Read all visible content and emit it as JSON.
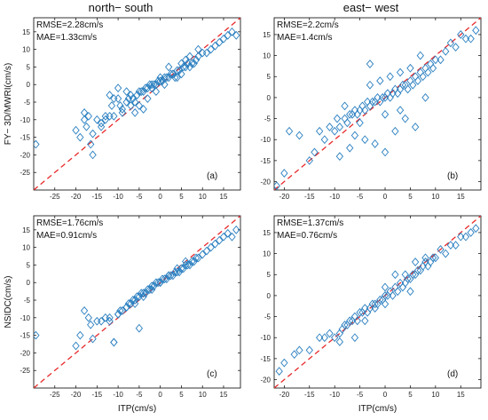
{
  "colors": {
    "marker": "#2a7fc0",
    "refline": "#e8292b",
    "axis": "#000000"
  },
  "column_titles": [
    "north− south",
    "east− west"
  ],
  "chart_data": [
    {
      "type": "scatter",
      "panel": "(a)",
      "ylabel": "FY− 3D/MWRI(cm/s)",
      "xlabel": "",
      "stats": [
        "RMSE=2.28cm/s",
        "MAE=1.33cm/s"
      ],
      "xlim": [
        -30,
        19
      ],
      "ylim": [
        -30,
        19
      ],
      "xticks": [
        -25,
        -20,
        -15,
        -10,
        -5,
        0,
        5,
        10,
        15
      ],
      "yticks": [
        -25,
        -20,
        -15,
        -10,
        -5,
        0,
        5,
        10,
        15
      ],
      "x": [
        -29.5,
        -20,
        -19,
        -18,
        -17.5,
        -17,
        -16.5,
        -16,
        -15,
        -14,
        -13,
        -12,
        -11.5,
        -11,
        -10,
        -9.5,
        -9,
        -8,
        -7.5,
        -7,
        -6.5,
        -6,
        -5.5,
        -5,
        -4.5,
        -4,
        -3.5,
        -3,
        -2.5,
        -2,
        -1.5,
        -1,
        -0.5,
        0,
        0.5,
        1,
        1.5,
        2,
        2.5,
        3,
        3.5,
        4,
        4.5,
        5,
        5.5,
        6,
        6.5,
        7,
        7.5,
        8,
        8.5,
        9,
        10,
        11,
        12,
        13,
        14,
        15,
        16,
        17,
        18,
        -12,
        -10,
        -8,
        -6,
        -4,
        -2,
        0,
        2,
        4,
        6,
        -13,
        -11,
        -9,
        -7,
        -5,
        -3,
        -1,
        1,
        3,
        5,
        7,
        9,
        -14,
        -16,
        -18
      ],
      "y": [
        -17,
        -13,
        -15,
        -8,
        -12,
        -9,
        -17,
        -20,
        -10,
        -11,
        -9,
        -9,
        -6,
        -4,
        -4,
        -6,
        -7,
        -5,
        -4,
        -3,
        -4,
        -5,
        -3,
        -2,
        -2,
        -2,
        -1,
        -1,
        0,
        -1,
        0,
        0,
        1,
        1,
        1,
        2,
        2,
        2,
        3,
        3,
        2,
        4,
        4,
        3,
        5,
        5,
        6,
        5,
        6,
        6,
        7,
        8,
        9,
        9,
        10,
        11,
        12,
        13,
        14,
        15,
        14,
        -3,
        -1,
        -2,
        -8,
        -7,
        0,
        2,
        5,
        2,
        7,
        -10,
        -9,
        -8,
        -6,
        -6,
        -4,
        -2,
        0,
        3,
        6,
        8,
        10,
        -12,
        -14,
        -10
      ]
    },
    {
      "type": "scatter",
      "panel": "(b)",
      "ylabel": "",
      "xlabel": "",
      "stats": [
        "RMSE=2.2cm/s",
        "MAE=1.4cm/s"
      ],
      "xlim": [
        -22,
        19
      ],
      "ylim": [
        -22,
        19
      ],
      "xticks": [
        -20,
        -15,
        -10,
        -5,
        0,
        5,
        10,
        15
      ],
      "yticks": [
        -20,
        -15,
        -10,
        -5,
        0,
        5,
        10,
        15
      ],
      "x": [
        -21.5,
        -20,
        -19,
        -17,
        -15,
        -14,
        -13,
        -12,
        -11,
        -10,
        -9.5,
        -9,
        -8,
        -7.5,
        -7,
        -6.5,
        -6,
        -5.5,
        -5,
        -4.5,
        -4,
        -3.5,
        -3,
        -2.5,
        -2,
        -1.5,
        -1,
        -0.5,
        0,
        0.5,
        1,
        1.5,
        2,
        2.5,
        3,
        3.5,
        4,
        4.5,
        5,
        5.5,
        6,
        6.5,
        7,
        7.5,
        8,
        8.5,
        9,
        9.5,
        10,
        11,
        12,
        13,
        14,
        15,
        16,
        17,
        18,
        -8,
        -6,
        -4,
        -2,
        0,
        2,
        4,
        6,
        8,
        -7,
        -5,
        -3,
        -1,
        1,
        3,
        5,
        7,
        -3,
        3,
        0,
        -9
      ],
      "y": [
        -21,
        -18,
        -8,
        -9,
        -15,
        -13,
        -8,
        -10,
        -7,
        -8,
        -5,
        -7,
        -5,
        -6,
        -4,
        -4,
        -3,
        -4,
        -3,
        -2,
        -3,
        -1,
        -2,
        -1,
        -1,
        0,
        -1,
        0,
        0,
        1,
        0,
        1,
        2,
        1,
        2,
        3,
        3,
        2,
        4,
        3,
        5,
        4,
        6,
        5,
        7,
        6,
        8,
        7,
        9,
        9,
        11,
        13,
        12,
        15,
        14,
        14,
        16,
        -2,
        -9,
        -10,
        -11,
        -13,
        -8,
        -5,
        -7,
        0,
        -12,
        -6,
        3,
        4,
        5,
        6,
        7,
        10,
        8,
        -3,
        -4,
        -14
      ]
    },
    {
      "type": "scatter",
      "panel": "(c)",
      "ylabel": "NSIDC(cm/s)",
      "xlabel": "ITP(cm/s)",
      "stats": [
        "RMSE=1.76cm/s",
        "MAE=0.91cm/s"
      ],
      "xlim": [
        -30,
        19
      ],
      "ylim": [
        -30,
        19
      ],
      "xticks": [
        -25,
        -20,
        -15,
        -10,
        -5,
        0,
        5,
        10,
        15
      ],
      "yticks": [
        -25,
        -20,
        -15,
        -10,
        -5,
        0,
        5,
        10,
        15
      ],
      "x": [
        -29.5,
        -20,
        -19,
        -18,
        -17,
        -16.5,
        -16,
        -15,
        -14,
        -13,
        -12,
        -11,
        -10,
        -9.5,
        -9,
        -8,
        -7.5,
        -7,
        -6.5,
        -6,
        -5.5,
        -5,
        -4.5,
        -4,
        -3.5,
        -3,
        -2.5,
        -2,
        -1.5,
        -1,
        -0.5,
        0,
        0.5,
        1,
        1.5,
        2,
        2.5,
        3,
        3.5,
        4,
        4.5,
        5,
        5.5,
        6,
        6.5,
        7,
        7.5,
        8,
        8.5,
        9,
        10,
        11,
        12,
        13,
        14,
        15,
        16,
        17,
        18,
        -12,
        -10,
        -8,
        -6,
        -4,
        -2,
        0,
        2,
        4,
        6,
        -5,
        -11
      ],
      "y": [
        -15,
        -18,
        -15,
        -8,
        -10,
        -12,
        -16,
        -11,
        -11,
        -10,
        -10,
        -17,
        -9,
        -8,
        -8,
        -7,
        -6,
        -6,
        -5,
        -5,
        -4,
        -4,
        -3,
        -3,
        -3,
        -2,
        -2,
        -1,
        -1,
        0,
        0,
        0,
        1,
        1,
        1,
        2,
        2,
        2,
        3,
        3,
        3,
        4,
        4,
        5,
        5,
        5,
        6,
        6,
        7,
        7,
        8,
        9,
        10,
        11,
        12,
        13,
        14,
        13,
        15,
        -11,
        -9,
        -7,
        -6,
        -4,
        -2,
        0,
        2,
        4,
        6,
        -13,
        -17
      ]
    },
    {
      "type": "scatter",
      "panel": "(d)",
      "ylabel": "",
      "xlabel": "ITP(cm/s)",
      "stats": [
        "RMSE=1.37cm/s",
        "MAE=0.76cm/s"
      ],
      "xlim": [
        -22,
        19
      ],
      "ylim": [
        -22,
        19
      ],
      "xticks": [
        -20,
        -15,
        -10,
        -5,
        0,
        5,
        10,
        15
      ],
      "yticks": [
        -20,
        -15,
        -10,
        -5,
        0,
        5,
        10,
        15
      ],
      "x": [
        -21,
        -20,
        -18,
        -17,
        -15,
        -13,
        -12,
        -11,
        -10,
        -9,
        -8.5,
        -8,
        -7.5,
        -7,
        -6.5,
        -6,
        -5.5,
        -5,
        -4.5,
        -4,
        -3.5,
        -3,
        -2.5,
        -2,
        -1.5,
        -1,
        -0.5,
        0,
        0.5,
        1,
        1.5,
        2,
        2.5,
        3,
        3.5,
        4,
        4.5,
        5,
        5.5,
        6,
        6.5,
        7,
        7.5,
        8,
        8.5,
        9,
        9.5,
        10,
        11,
        12,
        13,
        14,
        15,
        16,
        17,
        18,
        -6,
        -4,
        -2,
        0,
        2,
        4,
        6,
        8,
        -9,
        0,
        5
      ],
      "y": [
        -18,
        -16,
        -14,
        -13,
        -13,
        -10,
        -10,
        -9,
        -10,
        -9,
        -8,
        -7,
        -7,
        -6,
        -6,
        -5,
        -6,
        -4,
        -4,
        -3,
        -4,
        -3,
        -2,
        -2,
        -2,
        -1,
        -1,
        0,
        0,
        1,
        0,
        2,
        1,
        3,
        2,
        3,
        4,
        4,
        5,
        5,
        6,
        6,
        7,
        8,
        7,
        8,
        9,
        9,
        11,
        10,
        12,
        12,
        14,
        14,
        15,
        16,
        -10,
        -6,
        -3,
        2,
        5,
        5,
        8,
        9,
        -11,
        -2,
        1
      ]
    }
  ]
}
